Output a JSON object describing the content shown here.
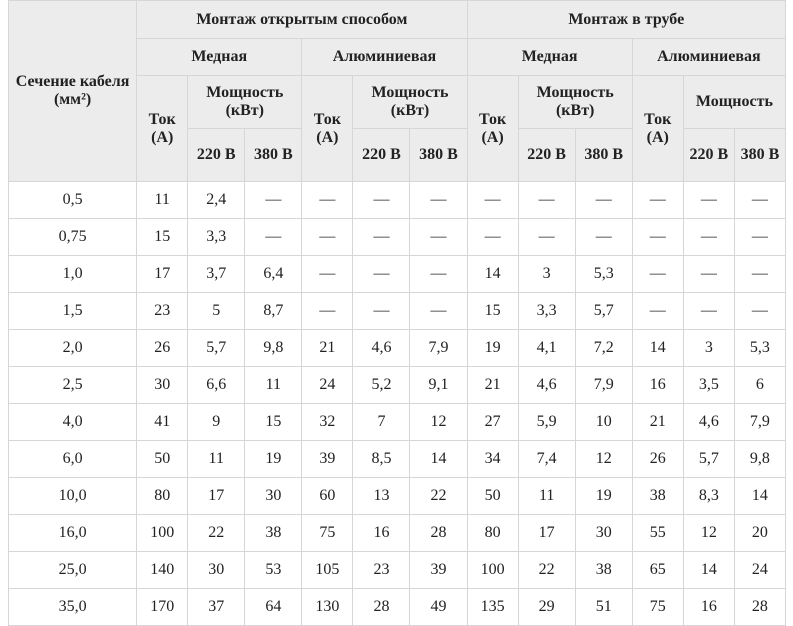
{
  "header": {
    "section_label": "Сечение кабеля (мм²)",
    "groups": [
      {
        "label": "Монтаж открытым способом",
        "materials": [
          {
            "label": "Медная",
            "current": "Ток (А)",
            "power": "Мощность (кВт)",
            "v220": "220 В",
            "v380": "380 В"
          },
          {
            "label": "Алюминиевая",
            "current": "Ток (А)",
            "power": "Мощность (кВт)",
            "v220": "220 В",
            "v380": "380 В"
          }
        ]
      },
      {
        "label": "Монтаж в трубе",
        "materials": [
          {
            "label": "Медная",
            "current": "Ток (А)",
            "power": "Мощность (кВт)",
            "v220": "220 В",
            "v380": "380 В"
          },
          {
            "label": "Алюминиевая",
            "current": "Ток (А)",
            "power": "Мощность",
            "v220": "220 В",
            "v380": "380 В"
          }
        ]
      }
    ]
  },
  "rows": [
    [
      "0,5",
      "11",
      "2,4",
      "—",
      "—",
      "—",
      "—",
      "—",
      "—",
      "—",
      "—",
      "—",
      "—"
    ],
    [
      "0,75",
      "15",
      "3,3",
      "—",
      "—",
      "—",
      "—",
      "—",
      "—",
      "—",
      "—",
      "—",
      "—"
    ],
    [
      "1,0",
      "17",
      "3,7",
      "6,4",
      "—",
      "—",
      "—",
      "14",
      "3",
      "5,3",
      "—",
      "—",
      "—"
    ],
    [
      "1,5",
      "23",
      "5",
      "8,7",
      "—",
      "—",
      "—",
      "15",
      "3,3",
      "5,7",
      "—",
      "—",
      "—"
    ],
    [
      "2,0",
      "26",
      "5,7",
      "9,8",
      "21",
      "4,6",
      "7,9",
      "19",
      "4,1",
      "7,2",
      "14",
      "3",
      "5,3"
    ],
    [
      "2,5",
      "30",
      "6,6",
      "11",
      "24",
      "5,2",
      "9,1",
      "21",
      "4,6",
      "7,9",
      "16",
      "3,5",
      "6"
    ],
    [
      "4,0",
      "41",
      "9",
      "15",
      "32",
      "7",
      "12",
      "27",
      "5,9",
      "10",
      "21",
      "4,6",
      "7,9"
    ],
    [
      "6,0",
      "50",
      "11",
      "19",
      "39",
      "8,5",
      "14",
      "34",
      "7,4",
      "12",
      "26",
      "5,7",
      "9,8"
    ],
    [
      "10,0",
      "80",
      "17",
      "30",
      "60",
      "13",
      "22",
      "50",
      "11",
      "19",
      "38",
      "8,3",
      "14"
    ],
    [
      "16,0",
      "100",
      "22",
      "38",
      "75",
      "16",
      "28",
      "80",
      "17",
      "30",
      "55",
      "12",
      "20"
    ],
    [
      "25,0",
      "140",
      "30",
      "53",
      "105",
      "23",
      "39",
      "100",
      "22",
      "38",
      "65",
      "14",
      "24"
    ],
    [
      "35,0",
      "170",
      "37",
      "64",
      "130",
      "28",
      "49",
      "135",
      "29",
      "51",
      "75",
      "16",
      "28"
    ]
  ]
}
